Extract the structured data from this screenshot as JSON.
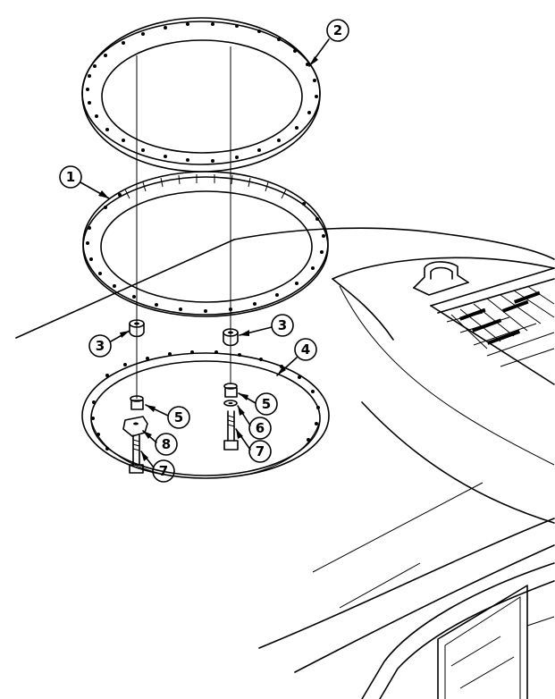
{
  "callouts": [
    {
      "id": "c1",
      "label": "1"
    },
    {
      "id": "c2",
      "label": "2"
    },
    {
      "id": "c3a",
      "label": "3"
    },
    {
      "id": "c3b",
      "label": "3"
    },
    {
      "id": "c4",
      "label": "4"
    },
    {
      "id": "c5a",
      "label": "5"
    },
    {
      "id": "c5b",
      "label": "5"
    },
    {
      "id": "c6",
      "label": "6"
    },
    {
      "id": "c7a",
      "label": "7"
    },
    {
      "id": "c7b",
      "label": "7"
    },
    {
      "id": "c8",
      "label": "8"
    }
  ]
}
